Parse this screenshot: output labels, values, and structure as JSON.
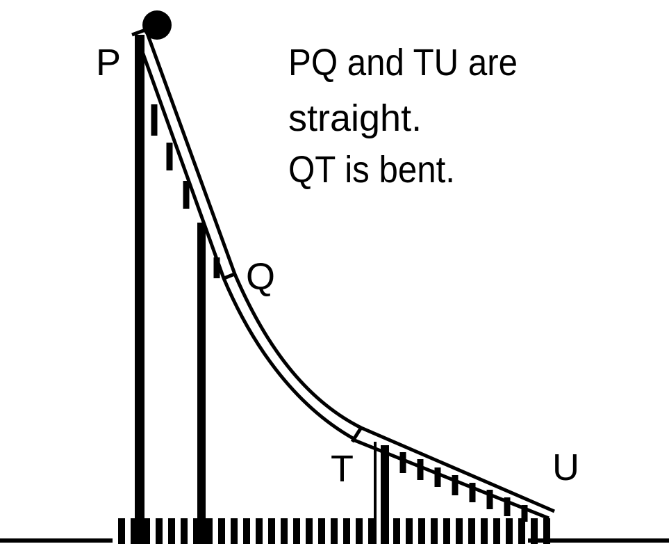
{
  "labels": {
    "p": "P",
    "q": "Q",
    "t": "T",
    "u": "U"
  },
  "note": [
    "PQ and TU are",
    "straight.",
    "QT is bent."
  ]
}
